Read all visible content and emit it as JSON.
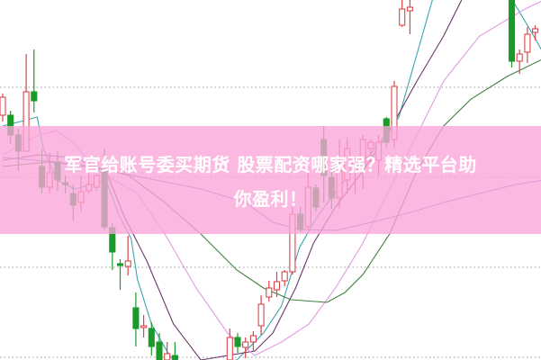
{
  "headline": {
    "line1": "军官给账号委买期货 股票配资哪家强？精选平台助",
    "line2": "你盈利！"
  },
  "colors": {
    "up": "#d9454a",
    "down": "#1b9a2a",
    "banner": "#faa5da",
    "grid": "#9a9a9a"
  },
  "chart_data": {
    "type": "candlestick",
    "title": "",
    "xlabel": "",
    "ylabel": "",
    "ylim": [
      0,
      400
    ],
    "xlim": [
      0,
      69
    ],
    "grid": "horizontal dotted",
    "gridlines": [
      3,
      103,
      203,
      303
    ],
    "candles_ohlc": [
      [
        0,
        272,
        296,
        265,
        292
      ],
      [
        1,
        272,
        277,
        240,
        250
      ],
      [
        2,
        250,
        257,
        210,
        232
      ],
      [
        3,
        232,
        340,
        232,
        298
      ],
      [
        4,
        298,
        345,
        275,
        288
      ],
      [
        5,
        215,
        235,
        185,
        192
      ],
      [
        6,
        192,
        230,
        185,
        208
      ],
      [
        7,
        220,
        232,
        188,
        200
      ],
      [
        8,
        197,
        205,
        185,
        195
      ],
      [
        9,
        185,
        195,
        155,
        172
      ],
      [
        10,
        175,
        205,
        165,
        187
      ],
      [
        11,
        188,
        210,
        185,
        195
      ],
      [
        12,
        192,
        220,
        188,
        205
      ],
      [
        13,
        210,
        235,
        145,
        148
      ],
      [
        14,
        147,
        152,
        100,
        120
      ],
      [
        15,
        107,
        112,
        78,
        105
      ],
      [
        16,
        104,
        138,
        94,
        110
      ],
      [
        17,
        58,
        75,
        15,
        35
      ],
      [
        18,
        36,
        50,
        25,
        38
      ],
      [
        19,
        35,
        42,
        5,
        15
      ],
      [
        20,
        20,
        30,
        0,
        0
      ],
      [
        21,
        0,
        20,
        0,
        7
      ],
      [
        22,
        5,
        20,
        0,
        0
      ],
      [
        29,
        0,
        35,
        0,
        25
      ],
      [
        30,
        25,
        30,
        8,
        15
      ],
      [
        31,
        14,
        25,
        2,
        20
      ],
      [
        32,
        20,
        32,
        10,
        27
      ],
      [
        33,
        38,
        72,
        28,
        62
      ],
      [
        34,
        70,
        88,
        65,
        80
      ],
      [
        35,
        78,
        98,
        70,
        87
      ],
      [
        36,
        88,
        100,
        82,
        98
      ],
      [
        37,
        98,
        170,
        95,
        162
      ],
      [
        38,
        162,
        170,
        142,
        145
      ],
      [
        39,
        148,
        210,
        145,
        192
      ],
      [
        40,
        191,
        195,
        165,
        170
      ],
      [
        41,
        245,
        260,
        175,
        205
      ],
      [
        42,
        203,
        215,
        168,
        180
      ],
      [
        43,
        180,
        245,
        168,
        210
      ],
      [
        44,
        200,
        247,
        185,
        235
      ],
      [
        45,
        210,
        225,
        185,
        222
      ],
      [
        46,
        215,
        250,
        190,
        245
      ],
      [
        47,
        235,
        245,
        220,
        242
      ],
      [
        48,
        222,
        250,
        205,
        242
      ],
      [
        49,
        268,
        270,
        235,
        242
      ],
      [
        50,
        245,
        310,
        235,
        304
      ],
      [
        51,
        372,
        400,
        370,
        390
      ],
      [
        52,
        388,
        400,
        362,
        392
      ],
      [
        65,
        400,
        400,
        325,
        332
      ],
      [
        66,
        332,
        345,
        318,
        340
      ],
      [
        67,
        342,
        370,
        330,
        362
      ],
      [
        68,
        364,
        372,
        355,
        368
      ]
    ],
    "moving_averages": [
      {
        "color": "#3aa3ad",
        "points": [
          [
            0,
            260
          ],
          [
            2.3,
            265
          ],
          [
            4.4,
            270
          ],
          [
            5.2,
            235
          ],
          [
            6.9,
            200
          ],
          [
            9.2,
            190
          ],
          [
            11.5,
            195
          ],
          [
            13.2,
            200
          ],
          [
            14.9,
            160
          ],
          [
            16.4,
            135
          ],
          [
            17.2,
            90
          ],
          [
            19,
            40
          ],
          [
            21.3,
            5
          ],
          [
            23,
            -10
          ],
          [
            29.9,
            0
          ],
          [
            33.3,
            30
          ],
          [
            35.6,
            60
          ],
          [
            37.9,
            125
          ],
          [
            40.2,
            160
          ],
          [
            43.7,
            200
          ],
          [
            47.1,
            230
          ],
          [
            50.6,
            270
          ],
          [
            52.9,
            340
          ],
          [
            55.2,
            410
          ],
          [
            64.4,
            410
          ],
          [
            66.1,
            385
          ],
          [
            67.8,
            360
          ],
          [
            69.1,
            340
          ]
        ]
      },
      {
        "color": "#6b3a6b",
        "points": [
          [
            0,
            222
          ],
          [
            4.6,
            228
          ],
          [
            9.2,
            225
          ],
          [
            13.2,
            210
          ],
          [
            15.5,
            160
          ],
          [
            18.4,
            110
          ],
          [
            21.8,
            40
          ],
          [
            25.3,
            0
          ],
          [
            32.2,
            10
          ],
          [
            34.5,
            30
          ],
          [
            37.4,
            80
          ],
          [
            39.7,
            130
          ],
          [
            42.5,
            170
          ],
          [
            46,
            210
          ],
          [
            49.4,
            255
          ],
          [
            52.9,
            310
          ],
          [
            56.3,
            360
          ],
          [
            58.6,
            400
          ]
        ]
      },
      {
        "color": "#e39ae0",
        "points": [
          [
            0,
            228
          ],
          [
            4.6,
            250
          ],
          [
            6.9,
            255
          ],
          [
            9.2,
            240
          ],
          [
            11.5,
            215
          ],
          [
            13.2,
            205
          ],
          [
            17.2,
            185
          ],
          [
            20.7,
            140
          ],
          [
            24.7,
            80
          ],
          [
            28.7,
            30
          ],
          [
            32.2,
            5
          ],
          [
            35.6,
            20
          ],
          [
            39.1,
            40
          ],
          [
            42.5,
            80
          ],
          [
            46,
            130
          ],
          [
            49.4,
            190
          ],
          [
            52.9,
            250
          ],
          [
            56.3,
            310
          ],
          [
            60.9,
            360
          ],
          [
            66.7,
            390
          ],
          [
            69.1,
            400
          ]
        ]
      },
      {
        "color": "#3f7f3f",
        "points": [
          [
            0,
            215
          ],
          [
            5.7,
            220
          ],
          [
            11.5,
            215
          ],
          [
            16.1,
            205
          ],
          [
            20.7,
            175
          ],
          [
            25.3,
            140
          ],
          [
            29.9,
            100
          ],
          [
            33.3,
            80
          ],
          [
            36.8,
            67
          ],
          [
            41.4,
            64
          ],
          [
            43.7,
            75
          ],
          [
            46,
            95
          ],
          [
            49.4,
            140
          ],
          [
            52.9,
            210
          ],
          [
            56.3,
            260
          ],
          [
            59.8,
            290
          ],
          [
            64.4,
            315
          ],
          [
            69.1,
            335
          ]
        ]
      },
      {
        "color": "#7a78b8",
        "points": [
          [
            0,
            225
          ],
          [
            6.9,
            220
          ],
          [
            13.8,
            210
          ],
          [
            19.5,
            200
          ],
          [
            25.3,
            190
          ],
          [
            31,
            175
          ],
          [
            34.5,
            153
          ],
          [
            37.9,
            145
          ],
          [
            42.5,
            144
          ],
          [
            47.1,
            153
          ],
          [
            51.7,
            163
          ],
          [
            56.3,
            175
          ],
          [
            60.9,
            185
          ],
          [
            65.5,
            195
          ],
          [
            69.1,
            200
          ]
        ]
      }
    ]
  }
}
